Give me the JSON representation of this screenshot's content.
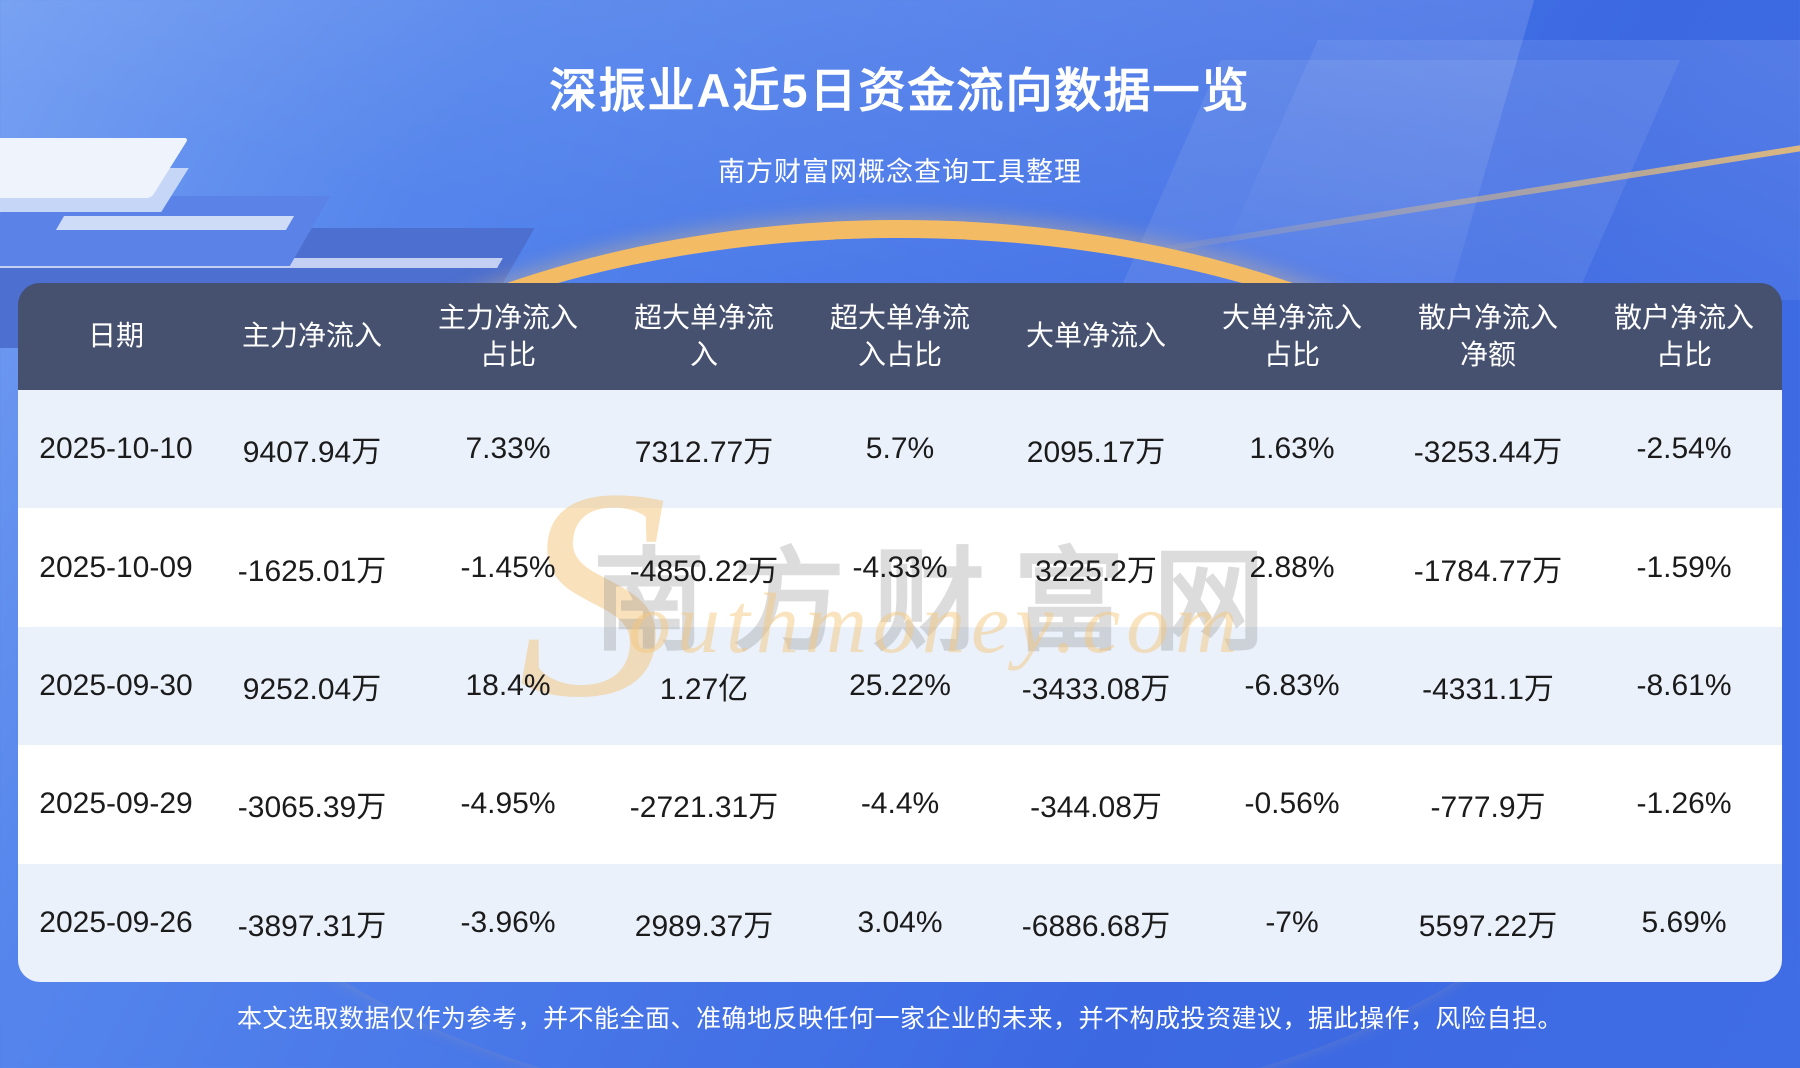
{
  "header": {
    "title": "深振业A近5日资金流向数据一览",
    "subtitle": "南方财富网概念查询工具整理"
  },
  "table": {
    "columns": [
      "日期",
      "主力净流入",
      "主力净流入\n占比",
      "超大单净流\n入",
      "超大单净流\n入占比",
      "大单净流入",
      "大单净流入\n占比",
      "散户净流入\n净额",
      "散户净流入\n占比"
    ],
    "rows": [
      [
        "2025-10-10",
        "9407.94万",
        "7.33%",
        "7312.77万",
        "5.7%",
        "2095.17万",
        "1.63%",
        "-3253.44万",
        "-2.54%"
      ],
      [
        "2025-10-09",
        "-1625.01万",
        "-1.45%",
        "-4850.22万",
        "-4.33%",
        "3225.2万",
        "2.88%",
        "-1784.77万",
        "-1.59%"
      ],
      [
        "2025-09-30",
        "9252.04万",
        "18.4%",
        "1.27亿",
        "25.22%",
        "-3433.08万",
        "-6.83%",
        "-4331.1万",
        "-8.61%"
      ],
      [
        "2025-09-29",
        "-3065.39万",
        "-4.95%",
        "-2721.31万",
        "-4.4%",
        "-344.08万",
        "-0.56%",
        "-777.9万",
        "-1.26%"
      ],
      [
        "2025-09-26",
        "-3897.31万",
        "-3.96%",
        "2989.37万",
        "3.04%",
        "-6886.68万",
        "-7%",
        "5597.22万",
        "5.69%"
      ]
    ]
  },
  "watermark": {
    "cn": "南方财富网",
    "en_initial": "S",
    "en_rest": "outhmoney.com"
  },
  "footer": {
    "disclaimer": "本文选取数据仅作为参考，并不能全面、准确地反映任何一家企业的未来，并不构成投资建议，据此操作，风险自担。"
  },
  "colors": {
    "page_blue": "#3f6de5",
    "table_header_bg": "#46506f",
    "row_alternate": "#eaf1fb",
    "accent_gold": "#f3bc64"
  }
}
